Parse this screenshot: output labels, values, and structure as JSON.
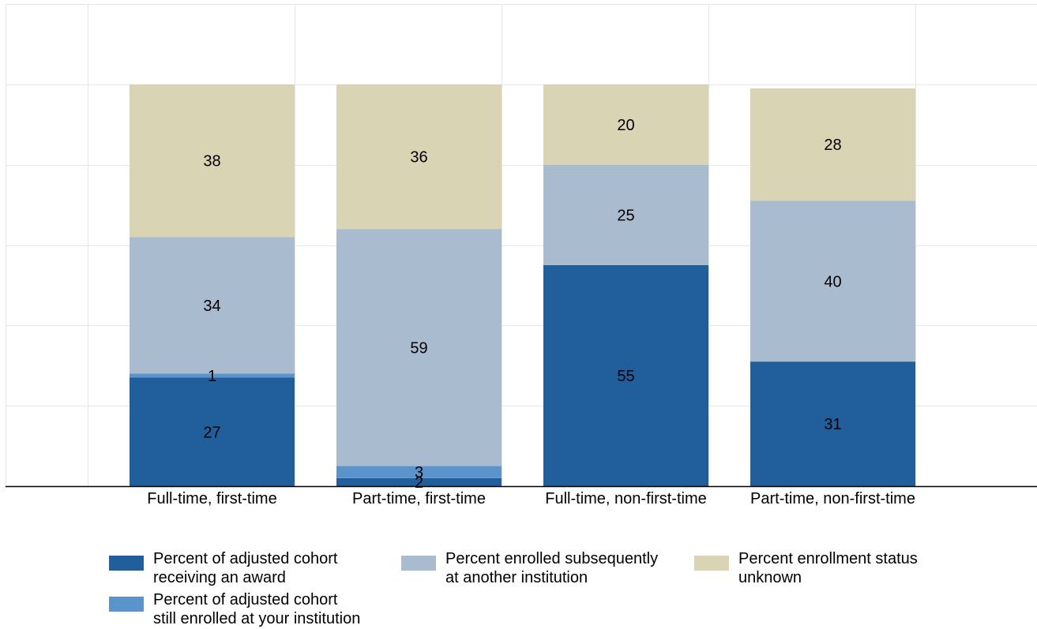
{
  "chart_data": {
    "type": "bar",
    "stacked": true,
    "categories": [
      "Full-time, first-time",
      "Part-time, first-time",
      "Full-time, non-first-time",
      "Part-time, non-first-time"
    ],
    "series": [
      {
        "name": "Percent of adjusted cohort receiving an award",
        "color": "#215E9C",
        "values": [
          27,
          2,
          55,
          31
        ]
      },
      {
        "name": "Percent of adjusted cohort still enrolled at your institution",
        "color": "#5B93CB",
        "values": [
          1,
          3,
          0,
          0
        ]
      },
      {
        "name": "Percent enrolled subsequently at another institution",
        "color": "#A9BBCE",
        "values": [
          34,
          59,
          25,
          40
        ]
      },
      {
        "name": "Percent enrollment status unknown",
        "color": "#D8D4B4",
        "values": [
          38,
          36,
          20,
          28
        ]
      }
    ],
    "ylim": [
      0,
      120
    ],
    "grid": true,
    "legend_position": "bottom",
    "title": "",
    "xlabel": "",
    "ylabel": ""
  },
  "legend": {
    "items": [
      {
        "label": "Percent of adjusted cohort\nreceiving an award",
        "color": "#215E9C"
      },
      {
        "label": "Percent of adjusted cohort\nstill enrolled at your institution",
        "color": "#5B93CB"
      },
      {
        "label": "Percent enrolled subsequently\nat another institution",
        "color": "#A9BBCE"
      },
      {
        "label": "Percent enrollment status\nunknown",
        "color": "#D8D4B4"
      }
    ]
  }
}
